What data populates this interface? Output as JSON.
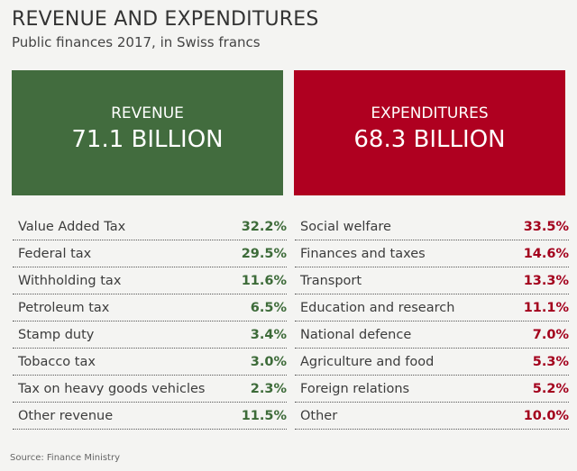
{
  "title": "REVENUE AND EXPENDITURES",
  "subtitle": "Public finances 2017, in Swiss francs",
  "colors": {
    "revenue": "#426c3e",
    "expenditures": "#af0020"
  },
  "revenue": {
    "label": "REVENUE",
    "total": "71.1 BILLION"
  },
  "expenditures": {
    "label": "EXPENDITURES",
    "total": "68.3 BILLION"
  },
  "chart_data": {
    "type": "table",
    "revenue": [
      {
        "name": "Value Added Tax",
        "pct": "32.2%"
      },
      {
        "name": "Federal tax",
        "pct": "29.5%"
      },
      {
        "name": "Withholding tax",
        "pct": "11.6%"
      },
      {
        "name": "Petroleum tax",
        "pct": "6.5%"
      },
      {
        "name": "Stamp duty",
        "pct": "3.4%"
      },
      {
        "name": "Tobacco tax",
        "pct": "3.0%"
      },
      {
        "name": "Tax on heavy goods vehicles",
        "pct": "2.3%"
      },
      {
        "name": "Other revenue",
        "pct": "11.5%"
      }
    ],
    "expenditures": [
      {
        "name": "Social welfare",
        "pct": "33.5%"
      },
      {
        "name": "Finances and taxes",
        "pct": "14.6%"
      },
      {
        "name": "Transport",
        "pct": "13.3%"
      },
      {
        "name": "Education and research",
        "pct": "11.1%"
      },
      {
        "name": "National defence",
        "pct": "7.0%"
      },
      {
        "name": "Agriculture and food",
        "pct": "5.3%"
      },
      {
        "name": "Foreign relations",
        "pct": "5.2%"
      },
      {
        "name": "Other",
        "pct": "10.0%"
      }
    ]
  },
  "source": "Source: Finance Ministry"
}
